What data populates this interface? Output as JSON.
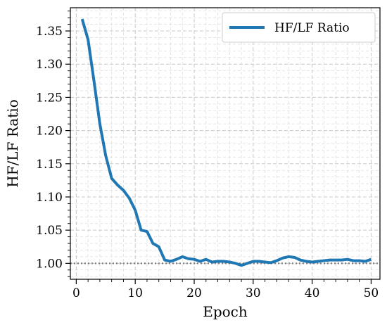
{
  "chart_data": {
    "type": "line",
    "xlabel": "Epoch",
    "ylabel": "HF/LF Ratio",
    "xlim": [
      -1,
      51.5
    ],
    "ylim": [
      0.976,
      1.385
    ],
    "xticks": [
      0,
      10,
      20,
      30,
      40,
      50
    ],
    "yticks": [
      1.0,
      1.05,
      1.1,
      1.15,
      1.2,
      1.25,
      1.3,
      1.35
    ],
    "ytick_labels": [
      "1.00",
      "1.05",
      "1.10",
      "1.15",
      "1.20",
      "1.25",
      "1.30",
      "1.35"
    ],
    "grid": true,
    "legend_position": "top-right",
    "reference_line": {
      "y": 1.0,
      "style": "dotted",
      "color": "#808080"
    },
    "series": [
      {
        "name": "HF/LF Ratio",
        "color": "#1f77b4",
        "x": [
          1,
          2,
          3,
          4,
          5,
          6,
          7,
          8,
          9,
          10,
          11,
          12,
          13,
          14,
          15,
          16,
          17,
          18,
          19,
          20,
          21,
          22,
          23,
          24,
          25,
          26,
          27,
          28,
          29,
          30,
          31,
          32,
          33,
          34,
          35,
          36,
          37,
          38,
          39,
          40,
          41,
          42,
          43,
          44,
          45,
          46,
          47,
          48,
          49,
          50
        ],
        "values": [
          1.368,
          1.337,
          1.275,
          1.21,
          1.162,
          1.128,
          1.118,
          1.11,
          1.098,
          1.08,
          1.05,
          1.048,
          1.03,
          1.025,
          1.005,
          1.003,
          1.006,
          1.01,
          1.007,
          1.006,
          1.003,
          1.006,
          1.002,
          1.003,
          1.003,
          1.002,
          1.0,
          0.997,
          1.0,
          1.003,
          1.003,
          1.002,
          1.001,
          1.004,
          1.008,
          1.01,
          1.009,
          1.005,
          1.003,
          1.002,
          1.003,
          1.004,
          1.005,
          1.005,
          1.005,
          1.006,
          1.004,
          1.004,
          1.003,
          1.006
        ]
      }
    ]
  }
}
